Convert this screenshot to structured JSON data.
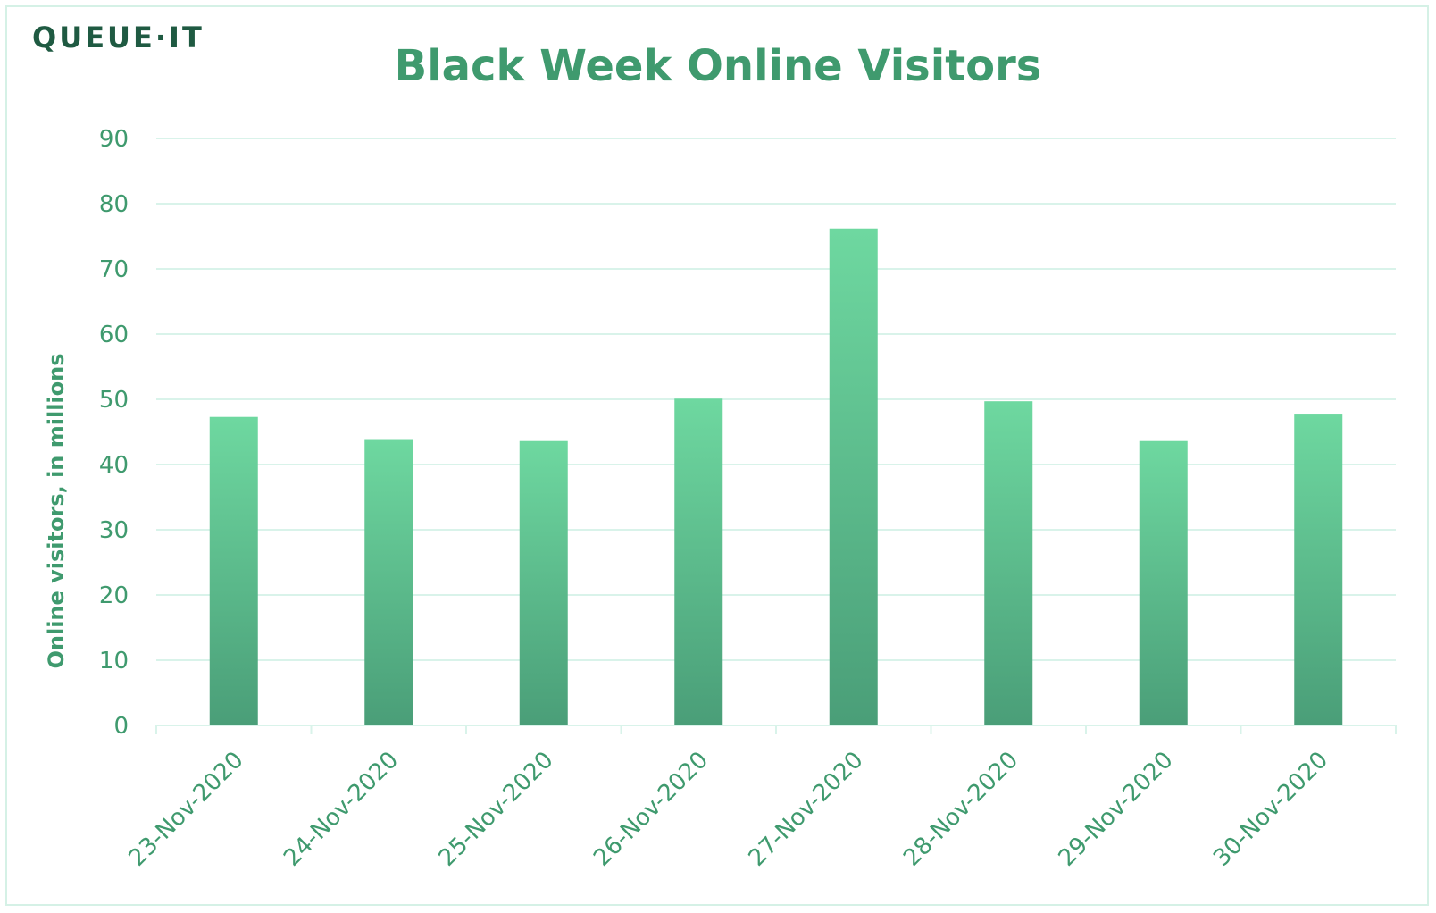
{
  "logo": {
    "text": "QUEUE·IT"
  },
  "colors": {
    "text": "#3f9a6e",
    "logo": "#1f5a42",
    "bar_top": "#6ed8a0",
    "bar_bottom": "#4a9e78",
    "grid": "#d9f3ea",
    "frame": "#d5f1e6"
  },
  "chart_data": {
    "type": "bar",
    "title": "Black Week Online Visitors",
    "xlabel": "",
    "ylabel": "Online visitors, in millions",
    "ylim": [
      0,
      90
    ],
    "yticks": [
      0,
      10,
      20,
      30,
      40,
      50,
      60,
      70,
      80,
      90
    ],
    "grid": true,
    "categories": [
      "23-Nov-2020",
      "24-Nov-2020",
      "25-Nov-2020",
      "26-Nov-2020",
      "27-Nov-2020",
      "28-Nov-2020",
      "29-Nov-2020",
      "30-Nov-2020"
    ],
    "values": [
      47.3,
      43.9,
      43.6,
      50.1,
      76.2,
      49.7,
      43.6,
      47.8
    ]
  }
}
